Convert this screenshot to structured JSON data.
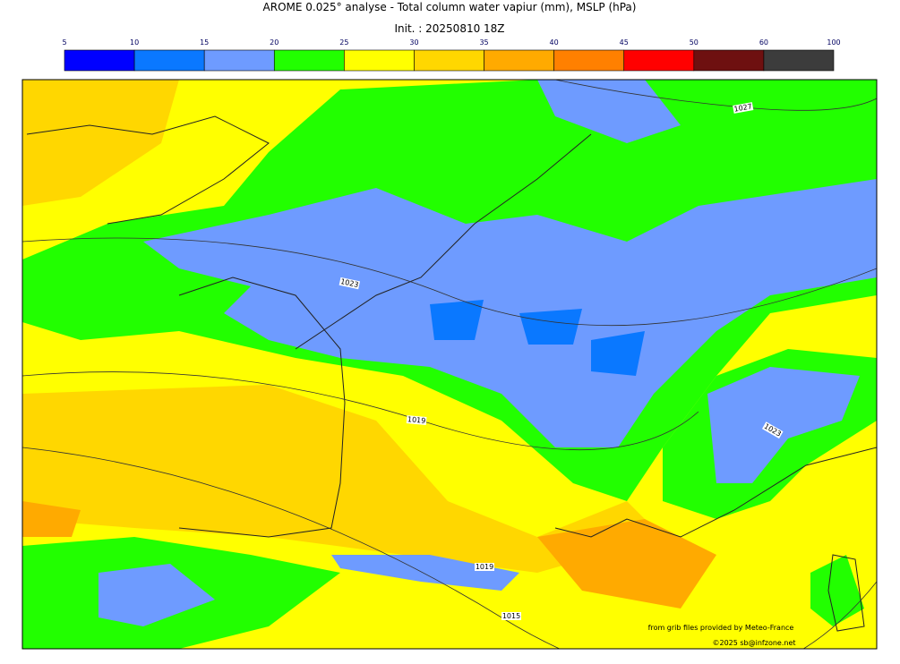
{
  "header": {
    "title": "AROME 0.025° analyse - Total column water vapiur (mm), MSLP (hPa)",
    "init": "Init. : 20250810 18Z"
  },
  "colorbar": {
    "ticks": [
      "5",
      "10",
      "15",
      "20",
      "25",
      "30",
      "35",
      "40",
      "45",
      "50",
      "60",
      "100"
    ],
    "colors": [
      "#0000ff",
      "#0a78ff",
      "#6e9bff",
      "#22ff00",
      "#ffff00",
      "#ffd700",
      "#ffaa00",
      "#ff8000",
      "#ff0000",
      "#6e1010",
      "#3c3c3c"
    ]
  },
  "map": {
    "contour_labels": [
      "1027",
      "1023",
      "1019",
      "1023",
      "1019",
      "1015"
    ],
    "credits": [
      "from grib files provided by Meteo-France",
      "©2025 sb@infzone.net"
    ]
  }
}
